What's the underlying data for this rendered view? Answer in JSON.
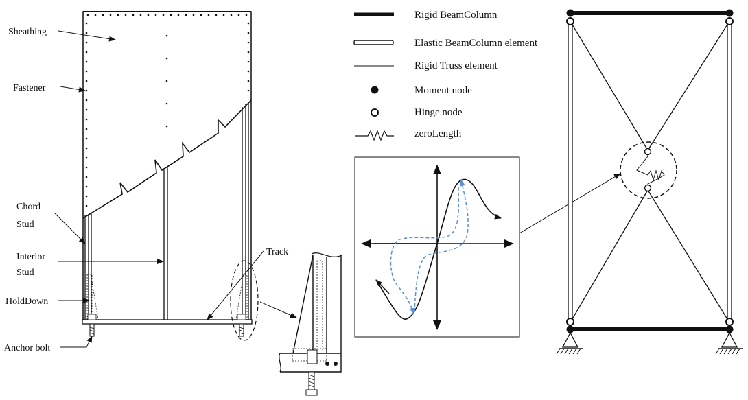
{
  "wall_labels": {
    "sheathing": "Sheathing",
    "fastener": "Fastener",
    "chord_stud_line1": "Chord",
    "chord_stud_line2": "Stud",
    "interior_stud_line1": "Interior",
    "interior_stud_line2": "Stud",
    "holddown": "HoldDown",
    "anchor_bolt": "Anchor bolt",
    "track": "Track"
  },
  "legend": {
    "rigid_beamcolumn": "Rigid BeamColumn",
    "elastic_beamcolumn": "Elastic BeamColumn element",
    "rigid_truss": "Rigid Truss element",
    "moment_node": "Moment node",
    "hinge_node": "Hinge node",
    "zero_length": "zeroLength"
  },
  "colors": {
    "line": "#111111",
    "hysteresis_path": "#5b8fd6"
  }
}
